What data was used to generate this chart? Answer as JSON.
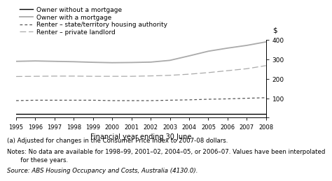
{
  "years": [
    1995,
    1996,
    1997,
    1998,
    1999,
    2000,
    2001,
    2002,
    2003,
    2004,
    2005,
    2006,
    2007,
    2008
  ],
  "owner_no_mortgage": [
    18,
    18,
    18,
    18,
    18,
    18,
    18,
    18,
    18,
    18,
    18,
    18,
    18,
    18
  ],
  "owner_with_mortgage": [
    290,
    292,
    290,
    288,
    285,
    283,
    284,
    286,
    295,
    318,
    342,
    358,
    372,
    390
  ],
  "renter_state": [
    88,
    90,
    90,
    90,
    90,
    88,
    88,
    88,
    90,
    92,
    95,
    97,
    100,
    103
  ],
  "renter_private": [
    212,
    213,
    214,
    214,
    213,
    213,
    213,
    215,
    218,
    224,
    232,
    242,
    252,
    268
  ],
  "ylim": [
    0,
    400
  ],
  "yticks": [
    0,
    100,
    200,
    300,
    400
  ],
  "xlabel": "Financial year ending 30 June",
  "ylabel": "$",
  "color_owner_no_mortgage": "#000000",
  "color_owner_with_mortgage": "#aaaaaa",
  "color_renter_state": "#555555",
  "color_renter_private": "#aaaaaa",
  "legend_labels": [
    "Owner without a mortgage",
    "Owner with a mortgage",
    "Renter – state/territory housing authority",
    "Renter – private landlord"
  ],
  "footnote1": "(a) Adjusted for changes in the Consumer Price Index to 2007-08 dollars.",
  "footnote2": "Notes: No data are available for 1998–99, 2001–02, 2004–05, or 2006–07. Values have been interpolated",
  "footnote2b": "       for these years.",
  "footnote3": "Source: ABS Housing Occupancy and Costs, Australia (4130.0)."
}
